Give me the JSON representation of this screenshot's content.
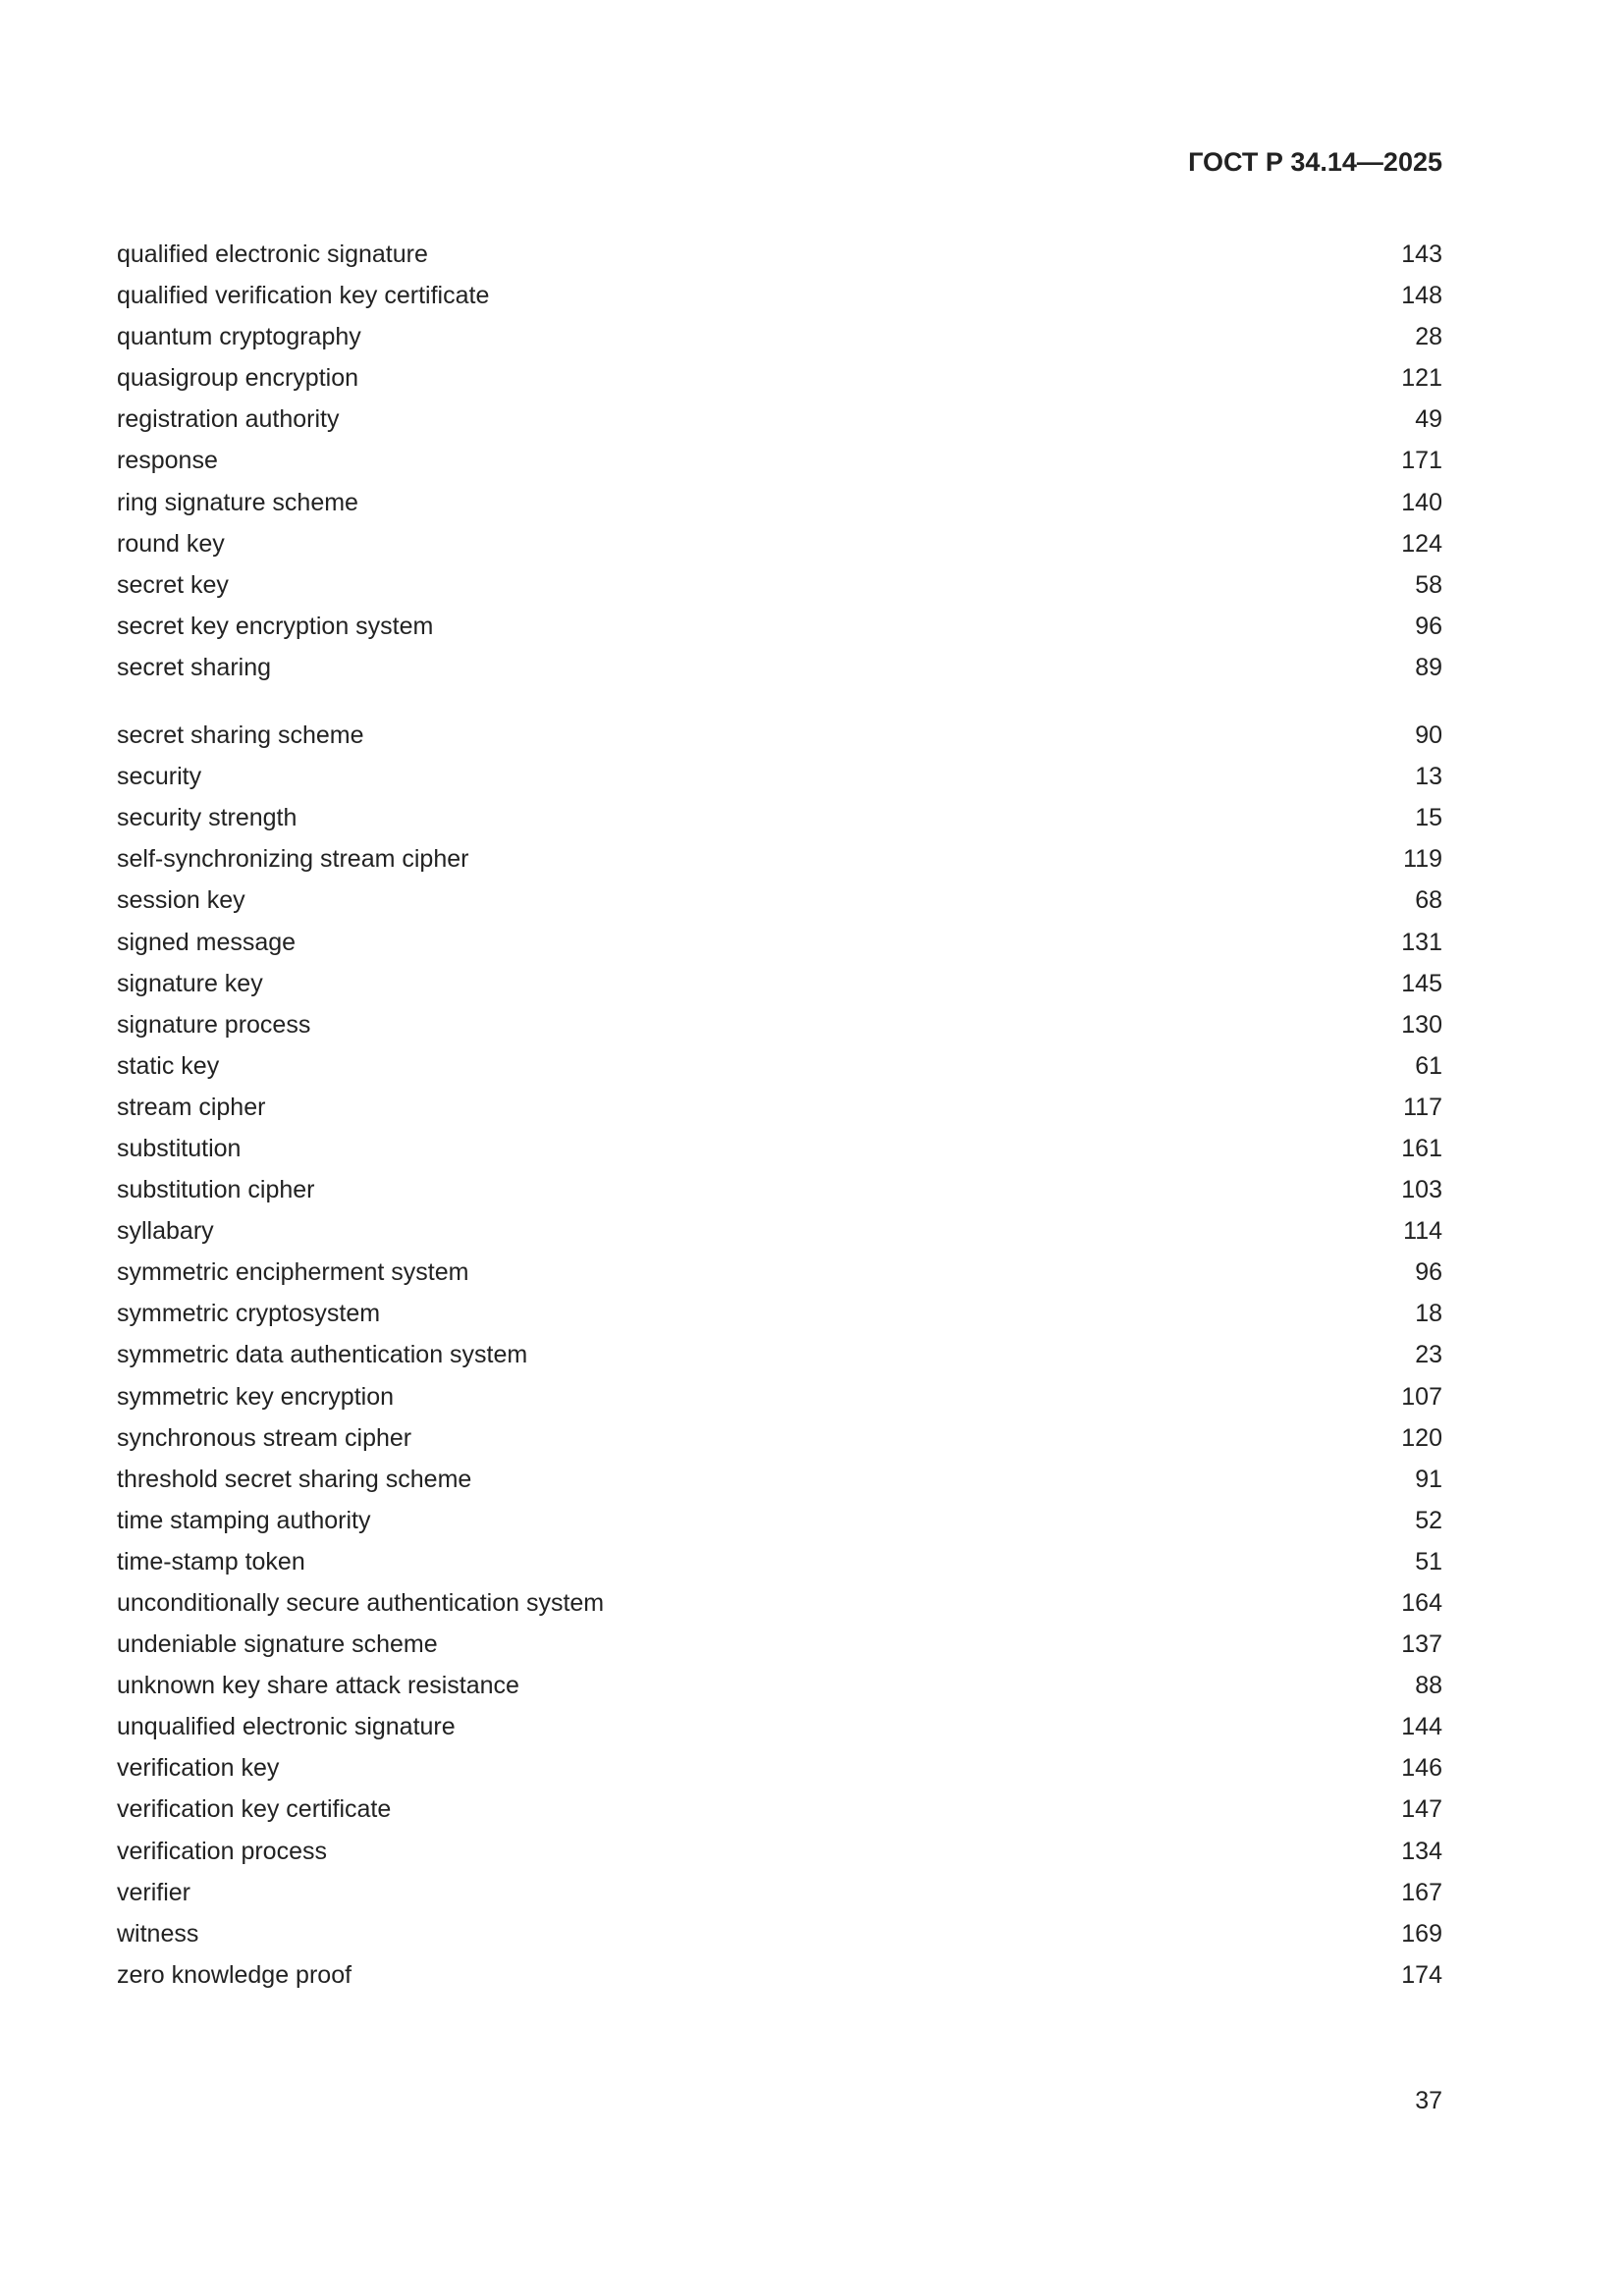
{
  "header": {
    "standard_code": "ГОСТ Р 34.14—2025"
  },
  "index": {
    "groups": [
      [
        {
          "term": "qualified electronic signature",
          "page": "143"
        },
        {
          "term": "qualified verification key certificate",
          "page": "148"
        },
        {
          "term": "quantum cryptography",
          "page": "28"
        },
        {
          "term": "quasigroup encryption",
          "page": "121"
        },
        {
          "term": "registration authority",
          "page": "49"
        },
        {
          "term": "response",
          "page": "171"
        },
        {
          "term": "ring signature scheme",
          "page": "140"
        },
        {
          "term": "round key",
          "page": "124"
        },
        {
          "term": "secret key",
          "page": "58"
        },
        {
          "term": "secret key encryption system",
          "page": "96"
        },
        {
          "term": "secret sharing",
          "page": "89"
        }
      ],
      [
        {
          "term": "secret sharing scheme",
          "page": "90"
        },
        {
          "term": "security",
          "page": "13"
        },
        {
          "term": "security strength",
          "page": "15"
        },
        {
          "term": "self-synchronizing stream cipher",
          "page": "119"
        },
        {
          "term": "session key",
          "page": "68"
        },
        {
          "term": "signed message",
          "page": "131"
        },
        {
          "term": "signature key",
          "page": "145"
        },
        {
          "term": "signature process",
          "page": "130"
        },
        {
          "term": "static key",
          "page": "61"
        },
        {
          "term": "stream cipher",
          "page": "117"
        },
        {
          "term": "substitution",
          "page": "161"
        },
        {
          "term": "substitution cipher",
          "page": "103"
        },
        {
          "term": "syllabary",
          "page": "114"
        },
        {
          "term": "symmetric encipherment system",
          "page": "96"
        },
        {
          "term": "symmetric cryptosystem",
          "page": "18"
        },
        {
          "term": "symmetric data authentication system",
          "page": "23"
        },
        {
          "term": "symmetric key encryption",
          "page": "107"
        },
        {
          "term": "synchronous stream cipher",
          "page": "120"
        },
        {
          "term": "threshold secret sharing scheme",
          "page": "91"
        },
        {
          "term": "time stamping authority",
          "page": "52"
        },
        {
          "term": "time-stamp token",
          "page": "51"
        },
        {
          "term": "unconditionally secure authentication system",
          "page": "164"
        },
        {
          "term": "undeniable signature scheme",
          "page": "137"
        },
        {
          "term": "unknown key share attack resistance",
          "page": "88"
        },
        {
          "term": "unqualified electronic signature",
          "page": "144"
        },
        {
          "term": "verification key",
          "page": "146"
        },
        {
          "term": "verification key certificate",
          "page": "147"
        },
        {
          "term": "verification process",
          "page": "134"
        },
        {
          "term": "verifier",
          "page": "167"
        },
        {
          "term": "witness",
          "page": "169"
        },
        {
          "term": "zero knowledge proof",
          "page": "174"
        }
      ]
    ]
  },
  "footer": {
    "page_number": "37"
  }
}
